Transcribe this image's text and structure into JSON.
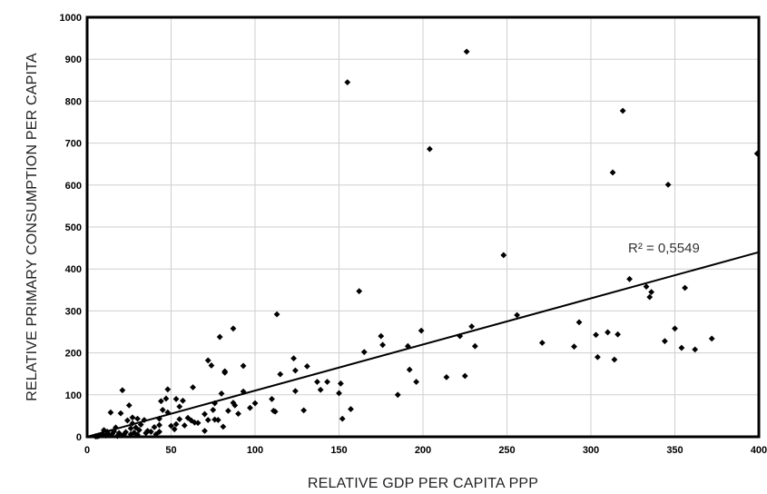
{
  "chart_data": {
    "type": "scatter",
    "title": "",
    "xlabel": "RELATIVE GDP PER CAPITA PPP",
    "ylabel": "RELATIVE PRIMARY CONSUMPTION PER CAPITA",
    "xlim": [
      0,
      400
    ],
    "ylim": [
      0,
      1000
    ],
    "xticks": [
      0,
      50,
      100,
      150,
      200,
      250,
      300,
      350,
      400
    ],
    "yticks": [
      0,
      100,
      200,
      300,
      400,
      500,
      600,
      700,
      800,
      900,
      1000
    ],
    "grid": true,
    "legend": "none",
    "annotation": "R² = 0,5549",
    "trendline": {
      "x": [
        0,
        400
      ],
      "y": [
        0,
        440
      ]
    },
    "marker_color": "#000000",
    "points": [
      [
        226,
        918
      ],
      [
        155,
        845
      ],
      [
        319,
        777
      ],
      [
        204,
        686
      ],
      [
        399,
        675
      ],
      [
        313,
        630
      ],
      [
        346,
        601
      ],
      [
        248,
        433
      ],
      [
        323,
        376
      ],
      [
        333,
        358
      ],
      [
        356,
        355
      ],
      [
        336,
        345
      ],
      [
        335,
        333
      ],
      [
        162,
        347
      ],
      [
        113,
        292
      ],
      [
        256,
        290
      ],
      [
        229,
        263
      ],
      [
        199,
        253
      ],
      [
        350,
        258
      ],
      [
        87,
        258
      ],
      [
        79,
        238
      ],
      [
        222,
        240
      ],
      [
        175,
        240
      ],
      [
        310,
        249
      ],
      [
        316,
        244
      ],
      [
        372,
        234
      ],
      [
        344,
        228
      ],
      [
        354,
        212
      ],
      [
        362,
        208
      ],
      [
        271,
        224
      ],
      [
        290,
        215
      ],
      [
        293,
        273
      ],
      [
        303,
        243
      ],
      [
        314,
        184
      ],
      [
        304,
        190
      ],
      [
        231,
        216
      ],
      [
        191,
        216
      ],
      [
        176,
        219
      ],
      [
        165,
        202
      ],
      [
        214,
        142
      ],
      [
        225,
        145
      ],
      [
        196,
        131
      ],
      [
        192,
        160
      ],
      [
        185,
        100
      ],
      [
        157,
        66
      ],
      [
        152,
        43
      ],
      [
        151,
        127
      ],
      [
        150,
        104
      ],
      [
        143,
        131
      ],
      [
        137,
        131
      ],
      [
        139,
        112
      ],
      [
        131,
        168
      ],
      [
        124,
        158
      ],
      [
        123,
        187
      ],
      [
        129,
        63
      ],
      [
        124,
        109
      ],
      [
        115,
        149
      ],
      [
        111,
        62
      ],
      [
        112,
        60
      ],
      [
        110,
        90
      ],
      [
        97,
        69
      ],
      [
        93,
        108
      ],
      [
        93,
        169
      ],
      [
        88,
        75
      ],
      [
        87,
        81
      ],
      [
        84,
        62
      ],
      [
        82,
        156
      ],
      [
        82,
        153
      ],
      [
        80,
        103
      ],
      [
        78,
        40
      ],
      [
        81,
        24
      ],
      [
        74,
        170
      ],
      [
        72,
        182
      ],
      [
        72,
        40
      ],
      [
        76,
        80
      ],
      [
        75,
        64
      ],
      [
        76,
        41
      ],
      [
        70,
        54
      ],
      [
        70,
        14
      ],
      [
        63,
        118
      ],
      [
        64,
        34
      ],
      [
        62,
        39
      ],
      [
        57,
        86
      ],
      [
        55,
        72
      ],
      [
        55,
        42
      ],
      [
        53,
        90
      ],
      [
        53,
        30
      ],
      [
        52,
        18
      ],
      [
        50,
        26
      ],
      [
        48,
        113
      ],
      [
        48,
        58
      ],
      [
        47,
        91
      ],
      [
        44,
        85
      ],
      [
        45,
        64
      ],
      [
        43,
        43
      ],
      [
        43,
        28
      ],
      [
        43,
        12
      ],
      [
        40,
        23
      ],
      [
        38,
        12
      ],
      [
        36,
        14
      ],
      [
        35,
        9
      ],
      [
        34,
        40
      ],
      [
        32,
        29
      ],
      [
        31,
        16
      ],
      [
        30,
        43
      ],
      [
        29,
        22
      ],
      [
        28,
        10
      ],
      [
        27,
        46
      ],
      [
        27,
        32
      ],
      [
        26,
        20
      ],
      [
        26,
        6
      ],
      [
        25,
        75
      ],
      [
        24,
        39
      ],
      [
        23,
        11
      ],
      [
        22,
        6
      ],
      [
        21,
        111
      ],
      [
        20,
        56
      ],
      [
        20,
        4
      ],
      [
        19,
        9
      ],
      [
        18,
        2
      ],
      [
        17,
        22
      ],
      [
        16,
        13
      ],
      [
        15,
        7
      ],
      [
        14,
        58
      ],
      [
        13,
        5
      ],
      [
        12,
        12
      ],
      [
        11,
        3
      ],
      [
        10,
        16
      ],
      [
        9,
        7
      ],
      [
        8,
        4
      ],
      [
        7,
        2
      ],
      [
        6,
        1
      ],
      [
        5,
        1
      ],
      [
        30,
        5
      ],
      [
        41,
        6
      ],
      [
        58,
        27
      ],
      [
        66,
        33
      ],
      [
        60,
        45
      ],
      [
        90,
        55
      ],
      [
        100,
        80
      ]
    ]
  }
}
